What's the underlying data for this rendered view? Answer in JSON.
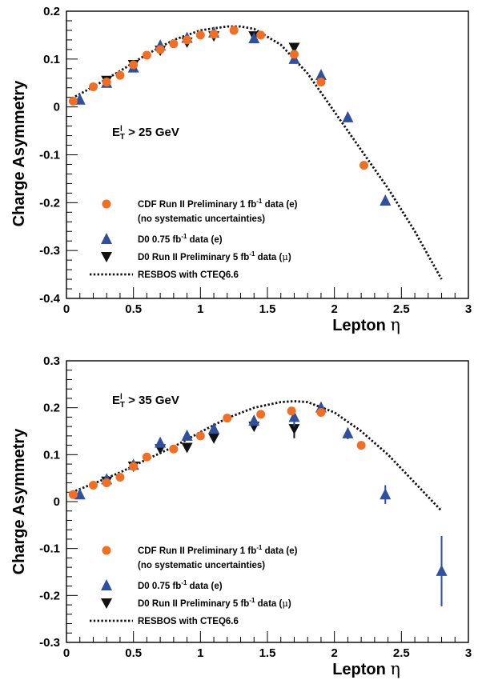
{
  "colors": {
    "cdf": "#f26e22",
    "d0e": "#2f4f9f",
    "d0mu": "#111111",
    "resbos": "#111111"
  },
  "legend": {
    "cdf": [
      "CDF Run II Preliminary 1 fb",
      "-1",
      " data (e)"
    ],
    "cdf_note": "(no systematic uncertainties)",
    "d0e": [
      "D0 0.75 fb",
      "-1",
      " data (e)"
    ],
    "d0mu": [
      "D0 Run II Preliminary 5 fb",
      "-1",
      " data (",
      "μ",
      ")"
    ],
    "resbos": "RESBOS with CTEQ6.6"
  },
  "chart_data": [
    {
      "type": "scatter",
      "title": "",
      "xlabel": [
        "Lepton ",
        "η"
      ],
      "ylabel": "Charge Asymmetry",
      "xlim": [
        0,
        3
      ],
      "ylim": [
        -0.4,
        0.2
      ],
      "x_ticks": [
        "0",
        "0.5",
        "1",
        "1.5",
        "2",
        "2.5",
        "3"
      ],
      "y_ticks": [
        "-0.4",
        "-0.3",
        "-0.2",
        "-0.1",
        "0",
        "0.1",
        "0.2"
      ],
      "annotation": [
        "E",
        "T",
        "l",
        " > 25 GeV"
      ],
      "legend_position": "bottom-left",
      "series": [
        {
          "name": "CDF Run II Preliminary 1 fb-1 data (e)",
          "marker": "circle",
          "x": [
            0.05,
            0.2,
            0.3,
            0.4,
            0.5,
            0.6,
            0.7,
            0.8,
            0.9,
            1.0,
            1.1,
            1.25,
            1.45,
            1.7,
            1.9,
            2.22
          ],
          "y": [
            0.012,
            0.042,
            0.052,
            0.066,
            0.088,
            0.108,
            0.12,
            0.132,
            0.14,
            0.15,
            0.152,
            0.16,
            0.15,
            0.11,
            0.052,
            -0.122
          ]
        },
        {
          "name": "D0 0.75 fb-1 data (e)",
          "marker": "triangle-up",
          "x": [
            0.1,
            0.3,
            0.5,
            0.7,
            0.9,
            1.1,
            1.4,
            1.7,
            1.9,
            2.1,
            2.38
          ],
          "y": [
            0.015,
            0.05,
            0.082,
            0.128,
            0.144,
            0.155,
            0.143,
            0.1,
            0.066,
            -0.022,
            -0.196
          ]
        },
        {
          "name": "D0 Run II Preliminary 5 fb-1 data (μ)",
          "marker": "triangle-down",
          "x": [
            0.3,
            0.5,
            0.7,
            0.9,
            1.1,
            1.4,
            1.7
          ],
          "y": [
            0.055,
            0.088,
            0.118,
            0.135,
            0.148,
            0.148,
            0.124
          ]
        },
        {
          "name": "RESBOS with CTEQ6.6",
          "marker": "dotted-line",
          "x": [
            0.04,
            0.2,
            0.4,
            0.6,
            0.8,
            1.0,
            1.2,
            1.3,
            1.4,
            1.6,
            1.8,
            2.0,
            2.2,
            2.4,
            2.6,
            2.8
          ],
          "y": [
            0.018,
            0.042,
            0.075,
            0.11,
            0.14,
            0.16,
            0.168,
            0.168,
            0.163,
            0.13,
            0.07,
            -0.01,
            -0.09,
            -0.17,
            -0.26,
            -0.36
          ]
        }
      ]
    },
    {
      "type": "scatter",
      "title": "",
      "xlabel": [
        "Lepton ",
        "η"
      ],
      "ylabel": "Charge Asymmetry",
      "xlim": [
        0,
        3
      ],
      "ylim": [
        -0.3,
        0.3
      ],
      "x_ticks": [
        "0",
        "0.5",
        "1",
        "1.5",
        "2",
        "2.5",
        "3"
      ],
      "y_ticks": [
        "-0.3",
        "-0.2",
        "-0.1",
        "0",
        "0.1",
        "0.2",
        "0.3"
      ],
      "annotation": [
        "E",
        "T",
        "l",
        " > 35 GeV"
      ],
      "legend_position": "bottom-left",
      "series": [
        {
          "name": "CDF Run II Preliminary 1 fb-1 data (e)",
          "marker": "circle",
          "x": [
            0.05,
            0.2,
            0.3,
            0.4,
            0.5,
            0.6,
            0.8,
            1.0,
            1.2,
            1.45,
            1.68,
            1.9,
            2.2
          ],
          "y": [
            0.015,
            0.035,
            0.04,
            0.052,
            0.075,
            0.095,
            0.112,
            0.14,
            0.178,
            0.186,
            0.193,
            0.19,
            0.12
          ]
        },
        {
          "name": "D0 0.75 fb-1 data (e)",
          "marker": "triangle-up",
          "x": [
            0.1,
            0.3,
            0.5,
            0.7,
            0.9,
            1.1,
            1.4,
            1.7,
            1.9,
            2.1,
            2.38,
            2.8
          ],
          "y": [
            0.015,
            0.047,
            0.078,
            0.125,
            0.14,
            0.155,
            0.172,
            0.18,
            0.2,
            0.145,
            0.015,
            -0.148
          ],
          "errors": [
            0,
            0,
            0,
            0,
            0,
            0,
            0,
            0.02,
            0.01,
            0.012,
            0.02,
            0.075
          ]
        },
        {
          "name": "D0 Run II Preliminary 5 fb-1 data (μ)",
          "marker": "triangle-down",
          "x": [
            0.3,
            0.5,
            0.7,
            0.9,
            1.1,
            1.4,
            1.7
          ],
          "y": [
            0.043,
            0.075,
            0.112,
            0.115,
            0.135,
            0.16,
            0.155
          ],
          "errors": [
            0,
            0,
            0,
            0,
            0,
            0,
            0.02
          ]
        },
        {
          "name": "RESBOS with CTEQ6.6",
          "marker": "dotted-line",
          "x": [
            0.04,
            0.2,
            0.4,
            0.6,
            0.8,
            1.0,
            1.2,
            1.4,
            1.6,
            1.7,
            1.8,
            2.0,
            2.2,
            2.4,
            2.6,
            2.8
          ],
          "y": [
            0.02,
            0.038,
            0.062,
            0.09,
            0.117,
            0.148,
            0.178,
            0.2,
            0.212,
            0.214,
            0.212,
            0.19,
            0.15,
            0.1,
            0.04,
            -0.02
          ]
        }
      ]
    }
  ]
}
